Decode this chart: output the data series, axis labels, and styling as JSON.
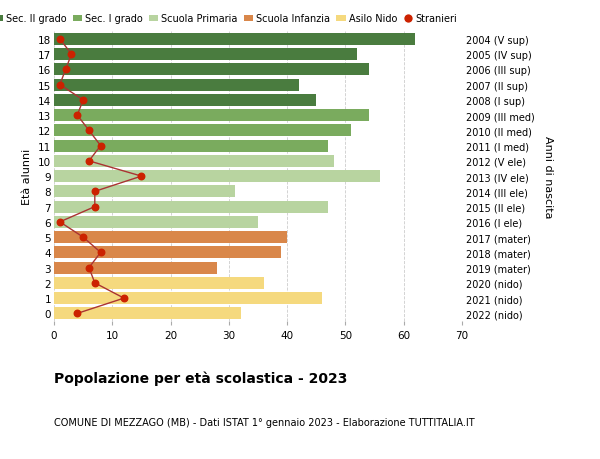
{
  "ages": [
    18,
    17,
    16,
    15,
    14,
    13,
    12,
    11,
    10,
    9,
    8,
    7,
    6,
    5,
    4,
    3,
    2,
    1,
    0
  ],
  "years": [
    "2004 (V sup)",
    "2005 (IV sup)",
    "2006 (III sup)",
    "2007 (II sup)",
    "2008 (I sup)",
    "2009 (III med)",
    "2010 (II med)",
    "2011 (I med)",
    "2012 (V ele)",
    "2013 (IV ele)",
    "2014 (III ele)",
    "2015 (II ele)",
    "2016 (I ele)",
    "2017 (mater)",
    "2018 (mater)",
    "2019 (mater)",
    "2020 (nido)",
    "2021 (nido)",
    "2022 (nido)"
  ],
  "bar_values": [
    62,
    52,
    54,
    42,
    45,
    54,
    51,
    47,
    48,
    56,
    31,
    47,
    35,
    40,
    39,
    28,
    36,
    46,
    32
  ],
  "bar_colors": [
    "#4a7c3f",
    "#4a7c3f",
    "#4a7c3f",
    "#4a7c3f",
    "#4a7c3f",
    "#7aab5e",
    "#7aab5e",
    "#7aab5e",
    "#b8d4a0",
    "#b8d4a0",
    "#b8d4a0",
    "#b8d4a0",
    "#b8d4a0",
    "#d9874a",
    "#d9874a",
    "#d9874a",
    "#f5d97e",
    "#f5d97e",
    "#f5d97e"
  ],
  "stranieri_values": [
    1,
    3,
    2,
    1,
    5,
    4,
    6,
    8,
    6,
    15,
    7,
    7,
    1,
    5,
    8,
    6,
    7,
    12,
    4
  ],
  "legend_labels": [
    "Sec. II grado",
    "Sec. I grado",
    "Scuola Primaria",
    "Scuola Infanzia",
    "Asilo Nido",
    "Stranieri"
  ],
  "legend_colors": [
    "#4a7c3f",
    "#7aab5e",
    "#b8d4a0",
    "#d9874a",
    "#f5d97e",
    "#cc2200"
  ],
  "title": "Popolazione per età scolastica - 2023",
  "subtitle": "COMUNE DI MEZZAGO (MB) - Dati ISTAT 1° gennaio 2023 - Elaborazione TUTTITALIA.IT",
  "ylabel_left": "Età alunni",
  "ylabel_right": "Anni di nascita",
  "xlim": [
    0,
    70
  ],
  "background_color": "#ffffff",
  "grid_color": "#cccccc",
  "stranieri_line_color": "#aa3333"
}
